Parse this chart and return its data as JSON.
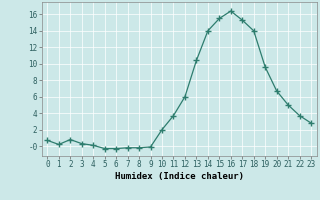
{
  "x": [
    0,
    1,
    2,
    3,
    4,
    5,
    6,
    7,
    8,
    9,
    10,
    11,
    12,
    13,
    14,
    15,
    16,
    17,
    18,
    19,
    20,
    21,
    22,
    23
  ],
  "y": [
    0.7,
    0.2,
    0.8,
    0.3,
    0.1,
    -0.3,
    -0.3,
    -0.2,
    -0.2,
    -0.1,
    2.0,
    3.7,
    6.0,
    10.4,
    14.0,
    15.5,
    16.4,
    15.3,
    14.0,
    9.6,
    6.7,
    5.0,
    3.7,
    2.8
  ],
  "line_color": "#2e7d6e",
  "marker": "+",
  "marker_size": 4,
  "bg_color": "#cce8e8",
  "grid_color": "#ffffff",
  "xlabel": "Humidex (Indice chaleur)",
  "xlim": [
    -0.5,
    23.5
  ],
  "ylim": [
    -1.2,
    17.5
  ],
  "yticks": [
    0,
    2,
    4,
    6,
    8,
    10,
    12,
    14,
    16
  ],
  "xticks": [
    0,
    1,
    2,
    3,
    4,
    5,
    6,
    7,
    8,
    9,
    10,
    11,
    12,
    13,
    14,
    15,
    16,
    17,
    18,
    19,
    20,
    21,
    22,
    23
  ],
  "xtick_labels": [
    "0",
    "1",
    "2",
    "3",
    "4",
    "5",
    "6",
    "7",
    "8",
    "9",
    "10",
    "11",
    "12",
    "13",
    "14",
    "15",
    "16",
    "17",
    "18",
    "19",
    "20",
    "21",
    "22",
    "23"
  ],
  "ytick_labels": [
    "-0",
    "2",
    "4",
    "6",
    "8",
    "10",
    "12",
    "14",
    "16"
  ],
  "label_fontsize": 6.5,
  "tick_fontsize": 5.5
}
